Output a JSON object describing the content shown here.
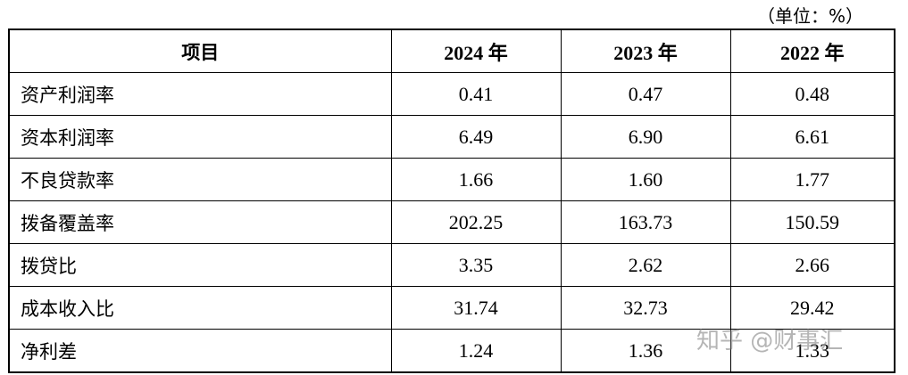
{
  "unit_note": "（单位：%）",
  "table": {
    "header": [
      "项目",
      "2024 年",
      "2023 年",
      "2022 年"
    ],
    "rows": [
      [
        "资产利润率",
        "0.41",
        "0.47",
        "0.48"
      ],
      [
        "资本利润率",
        "6.49",
        "6.90",
        "6.61"
      ],
      [
        "不良贷款率",
        "1.66",
        "1.60",
        "1.77"
      ],
      [
        "拨备覆盖率",
        "202.25",
        "163.73",
        "150.59"
      ],
      [
        "拨贷比",
        "3.35",
        "2.62",
        "2.66"
      ],
      [
        "成本收入比",
        "31.74",
        "32.73",
        "29.42"
      ],
      [
        "净利差",
        "1.24",
        "1.36",
        "1.33"
      ]
    ]
  },
  "watermark": "知乎 @财事汇"
}
